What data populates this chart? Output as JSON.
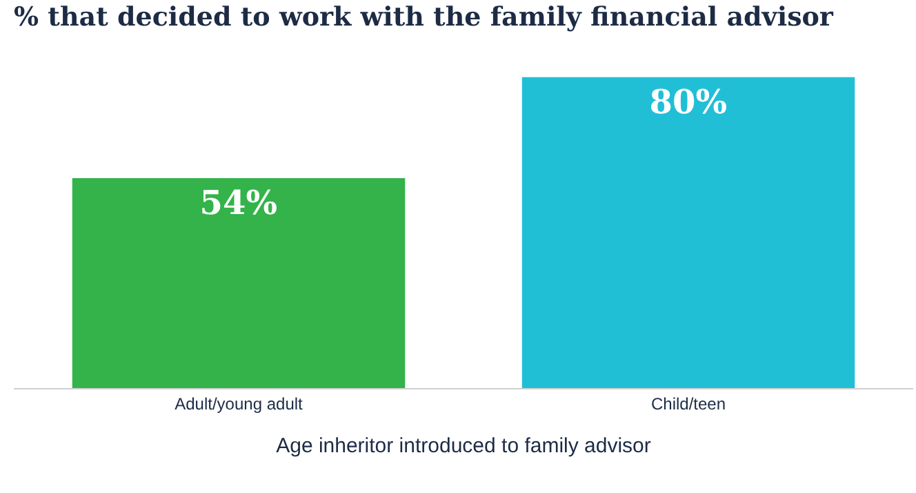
{
  "chart_data": {
    "type": "bar",
    "title": "% that decided to work with the family financial advisor",
    "xlabel": "Age inheritor introduced to family advisor",
    "categories": [
      "Adult/young adult",
      "Child/teen"
    ],
    "values": [
      54,
      80
    ],
    "value_labels": [
      "54%",
      "80%"
    ],
    "colors": [
      "#33b34a",
      "#21bfd6"
    ],
    "grid": false,
    "legend": false
  }
}
